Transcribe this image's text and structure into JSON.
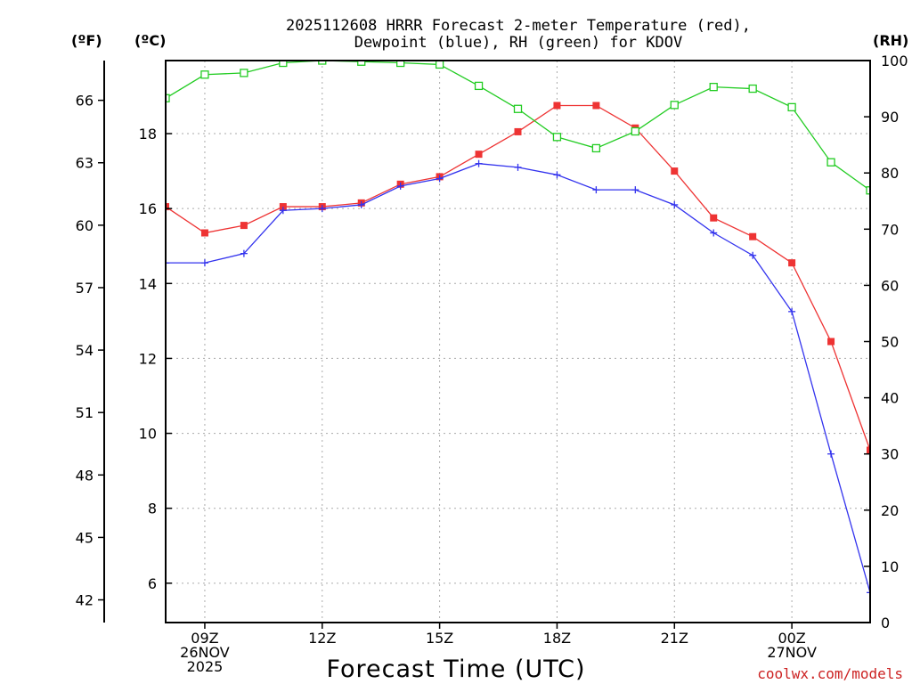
{
  "chart_data": {
    "type": "line",
    "title": "2025112608 HRRR Forecast 2-meter Temperature (red),",
    "subtitle": "Dewpoint (blue), RH (green) for KDOV",
    "xlabel": "Forecast Time (UTC)",
    "credit": "coolwx.com/models",
    "units": {
      "left_outer": "(ºF)",
      "left_inner": "(ºC)",
      "right": "(RH)"
    },
    "x_hours": [
      8,
      9,
      10,
      11,
      12,
      13,
      14,
      15,
      16,
      17,
      18,
      19,
      20,
      21,
      22,
      23,
      24,
      25,
      26
    ],
    "x_range": [
      8,
      26
    ],
    "x_ticks": [
      {
        "hour": 9,
        "line1": "09Z",
        "line2": "26NOV",
        "line3": "2025"
      },
      {
        "hour": 12,
        "line1": "12Z",
        "line2": "",
        "line3": ""
      },
      {
        "hour": 15,
        "line1": "15Z",
        "line2": "",
        "line3": ""
      },
      {
        "hour": 18,
        "line1": "18Z",
        "line2": "",
        "line3": ""
      },
      {
        "hour": 21,
        "line1": "21Z",
        "line2": "",
        "line3": ""
      },
      {
        "hour": 24,
        "line1": "00Z",
        "line2": "27NOV",
        "line3": ""
      }
    ],
    "ylim_c": [
      4.95,
      19.95
    ],
    "y_ticks_c": [
      6,
      8,
      10,
      12,
      14,
      16,
      18
    ],
    "y_ticks_f": [
      42,
      45,
      48,
      51,
      54,
      57,
      60,
      63,
      66
    ],
    "ylim_rh": [
      0,
      100
    ],
    "y_ticks_rh": [
      0,
      10,
      20,
      30,
      40,
      50,
      60,
      70,
      80,
      90,
      100
    ],
    "series": [
      {
        "name": "Temperature",
        "color": "#ee3333",
        "marker": "square-filled",
        "axis": "c",
        "values": [
          16.05,
          15.35,
          15.55,
          16.05,
          16.05,
          16.15,
          16.65,
          16.85,
          17.45,
          18.05,
          18.75,
          18.75,
          18.15,
          17.0,
          15.75,
          15.25,
          14.55,
          12.45,
          9.55
        ]
      },
      {
        "name": "Dewpoint",
        "color": "#3333ee",
        "marker": "plus",
        "axis": "c",
        "values": [
          14.55,
          14.55,
          14.8,
          15.95,
          16.0,
          16.1,
          16.6,
          16.8,
          17.2,
          17.1,
          16.9,
          16.5,
          16.5,
          16.1,
          15.35,
          14.75,
          13.25,
          9.45,
          5.75
        ]
      },
      {
        "name": "RH",
        "color": "#22cc22",
        "marker": "square-open",
        "axis": "rh",
        "values": [
          93.3,
          97.5,
          97.8,
          99.6,
          100,
          99.8,
          99.6,
          99.3,
          95.5,
          91.4,
          86.4,
          84.4,
          87.4,
          92.1,
          95.3,
          95.0,
          91.7,
          81.9,
          76.9
        ]
      }
    ]
  }
}
